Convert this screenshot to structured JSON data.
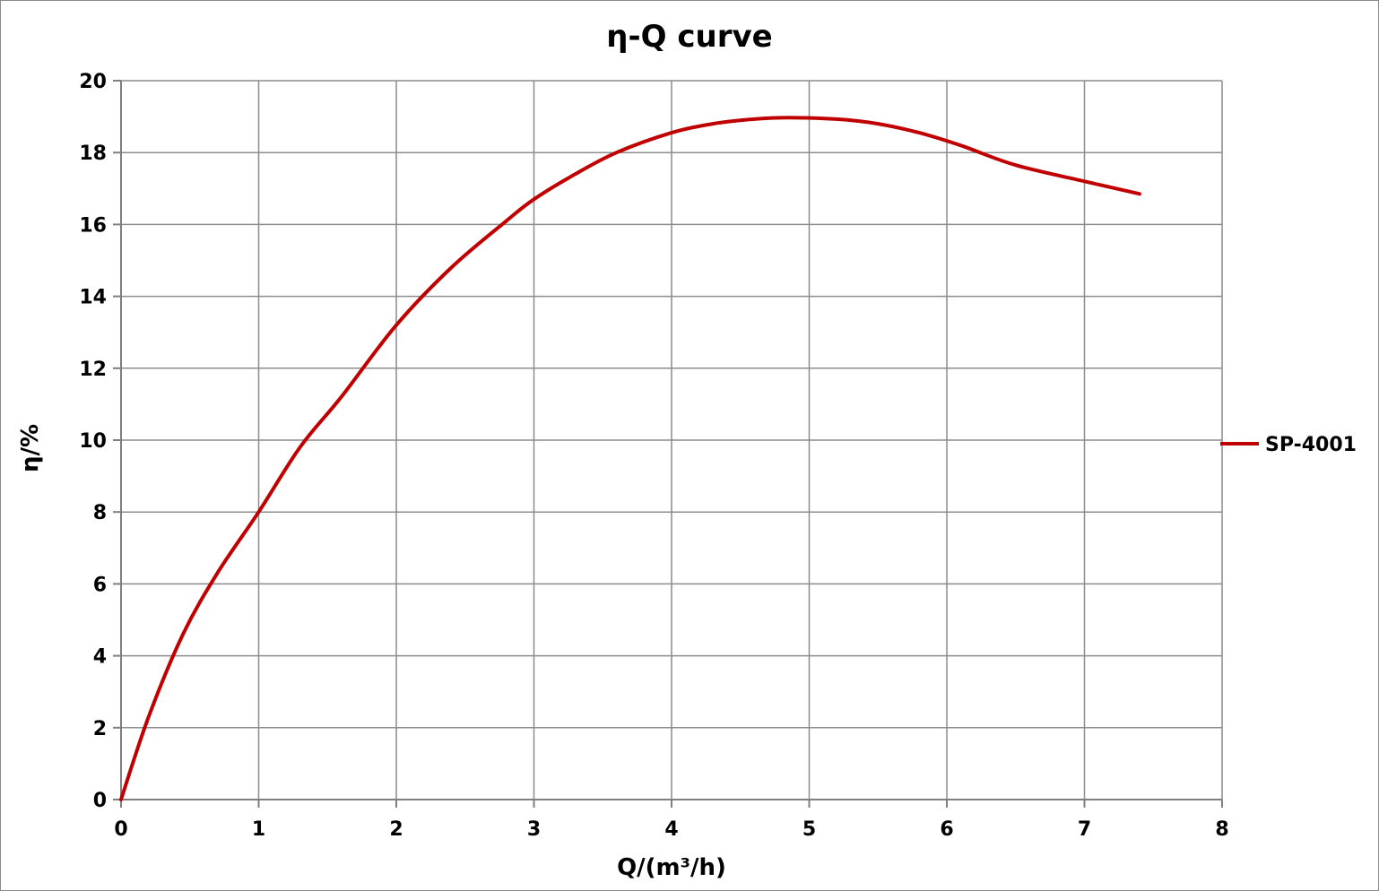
{
  "chart_data": {
    "type": "line",
    "title": "η-Q  curve",
    "xlabel": "Q/(m³/h)",
    "ylabel": "η/%",
    "xlim": [
      0,
      8
    ],
    "ylim": [
      0,
      20
    ],
    "xticks": [
      0,
      1,
      2,
      3,
      4,
      5,
      6,
      7,
      8
    ],
    "yticks": [
      0,
      2,
      4,
      6,
      8,
      10,
      12,
      14,
      16,
      18,
      20
    ],
    "grid": true,
    "legend_position": "right",
    "series": [
      {
        "name": "SP-4001",
        "color": "#c00000",
        "x": [
          0,
          0.2,
          0.45,
          0.7,
          1.0,
          1.3,
          1.6,
          2.0,
          2.4,
          2.8,
          3.0,
          3.3,
          3.6,
          4.0,
          4.3,
          4.6,
          4.85,
          5.2,
          5.5,
          5.8,
          6.1,
          6.5,
          7.0,
          7.4
        ],
        "y": [
          0,
          2.3,
          4.6,
          6.3,
          8.0,
          9.8,
          11.2,
          13.2,
          14.8,
          16.1,
          16.7,
          17.4,
          18.0,
          18.55,
          18.8,
          18.93,
          18.97,
          18.93,
          18.8,
          18.55,
          18.2,
          17.65,
          17.2,
          16.85
        ]
      }
    ]
  }
}
